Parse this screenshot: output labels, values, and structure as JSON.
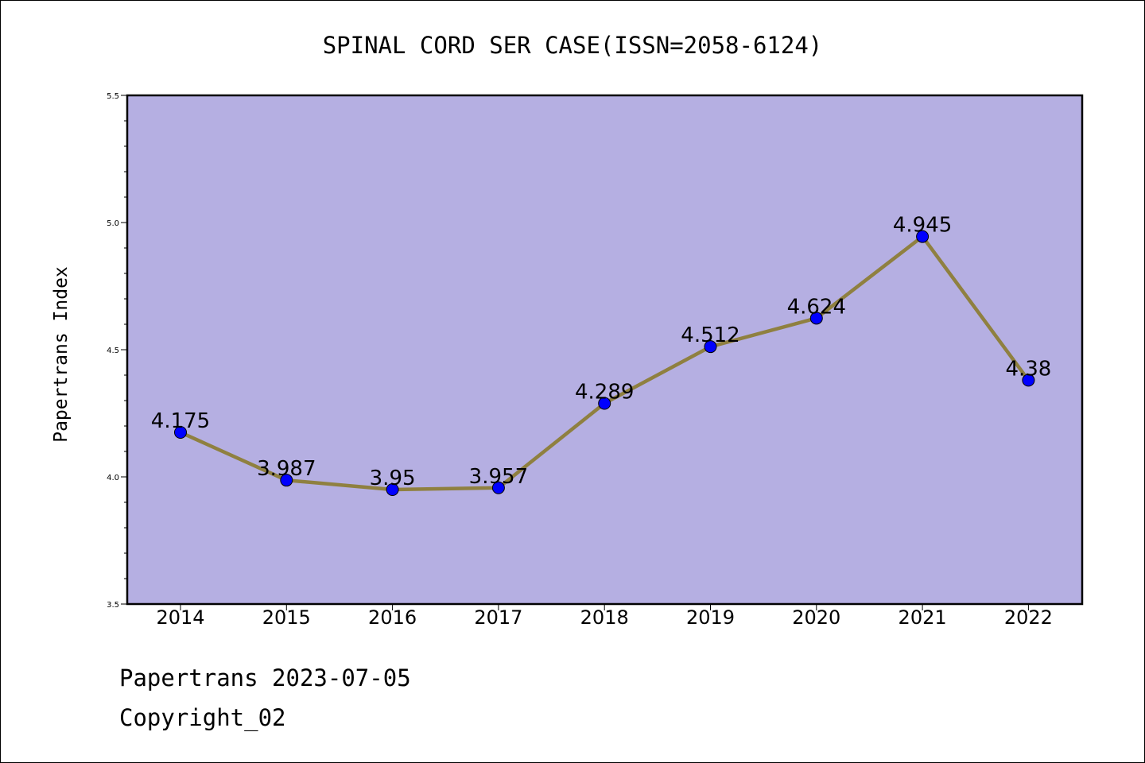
{
  "chart_data": {
    "type": "line",
    "title": "SPINAL CORD SER CASE(ISSN=2058-6124)",
    "xlabel": "",
    "ylabel": "Papertrans Index",
    "categories": [
      "2014",
      "2015",
      "2016",
      "2017",
      "2018",
      "2019",
      "2020",
      "2021",
      "2022"
    ],
    "values": [
      4.175,
      3.987,
      3.95,
      3.957,
      4.289,
      4.512,
      4.624,
      4.945,
      4.38
    ],
    "data_labels": [
      "4.175",
      "3.987",
      "3.95",
      "3.957",
      "4.289",
      "4.512",
      "4.624",
      "4.945",
      "4.38"
    ],
    "ylim": [
      3.5,
      5.5
    ],
    "yticks": [
      "3.5",
      "4.0",
      "4.5",
      "5.0",
      "5.5"
    ],
    "grid": false,
    "colors": {
      "plot_background": "#b5afe2",
      "line": "#8f8040",
      "marker": "#0000ff"
    }
  },
  "footer": {
    "line1": "Papertrans 2023-07-05",
    "line2": "Copyright_02"
  }
}
